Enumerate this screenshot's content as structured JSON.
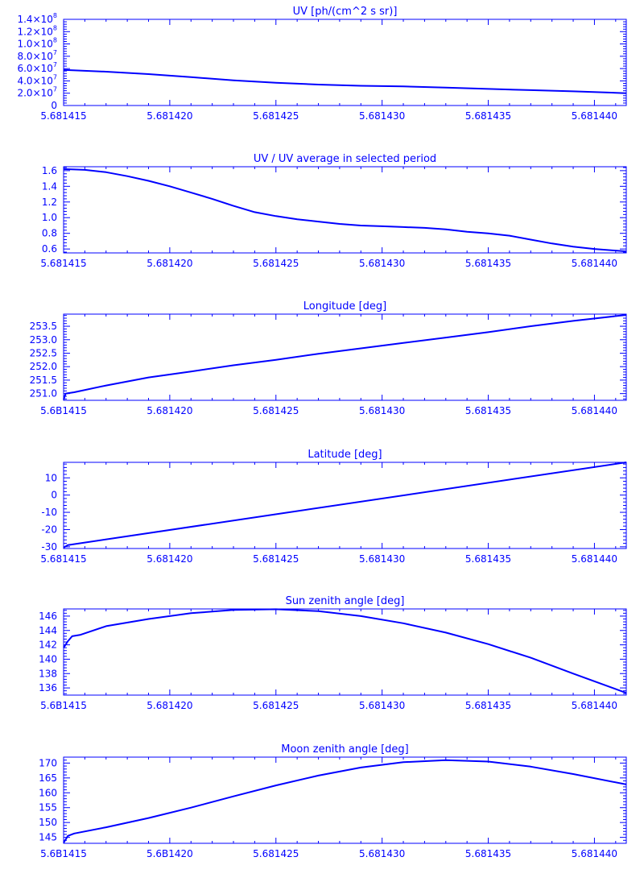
{
  "theme": {
    "color": "#0000ff",
    "background": "#ffffff"
  },
  "chart_data": [
    {
      "type": "line",
      "title": "UV [ph/(cm^2 s sr)]",
      "xlim": [
        5.681415,
        5.6814415
      ],
      "ylim": [
        0,
        140000000
      ],
      "xtick_values": [
        5.681415,
        5.68142,
        5.681425,
        5.68143,
        5.681435,
        5.68144
      ],
      "xtick_labels": [
        "5.681415",
        "5.681420",
        "5.681425",
        "5.681430",
        "5.681435",
        "5.681440"
      ],
      "ytick_values": [
        0,
        20000000,
        40000000,
        60000000,
        80000000,
        100000000,
        120000000,
        140000000
      ],
      "ytick_labels": [
        {
          "mant": "0",
          "exp": ""
        },
        {
          "mant": "2.0×10",
          "exp": "7"
        },
        {
          "mant": "4.0×10",
          "exp": "7"
        },
        {
          "mant": "6.0×10",
          "exp": "7"
        },
        {
          "mant": "8.0×10",
          "exp": "7"
        },
        {
          "mant": "1.0×10",
          "exp": "8"
        },
        {
          "mant": "1.2×10",
          "exp": "8"
        },
        {
          "mant": "1.4×10",
          "exp": "8"
        }
      ],
      "series": [
        {
          "x": [
            5.681415,
            5.681417,
            5.681419,
            5.681421,
            5.681423,
            5.681425,
            5.681427,
            5.681429,
            5.681431,
            5.681433,
            5.681435,
            5.681437,
            5.681439,
            5.6814415
          ],
          "y": [
            58000000,
            55000000,
            51000000,
            46000000,
            41000000,
            37000000,
            34000000,
            32000000,
            31000000,
            29000000,
            27000000,
            25000000,
            23000000,
            20000000
          ]
        }
      ]
    },
    {
      "type": "line",
      "title": "UV / UV average in selected period",
      "xlim": [
        5.681415,
        5.6814415
      ],
      "ylim": [
        0.55,
        1.65
      ],
      "xtick_values": [
        5.681415,
        5.68142,
        5.681425,
        5.68143,
        5.681435,
        5.68144
      ],
      "xtick_labels": [
        "5.681415",
        "5.681420",
        "5.681425",
        "5.681430",
        "5.681435",
        "5.681440"
      ],
      "ytick_values": [
        0.6,
        0.8,
        1.0,
        1.2,
        1.4,
        1.6
      ],
      "ytick_labels": [
        {
          "mant": "0.6",
          "exp": ""
        },
        {
          "mant": "0.8",
          "exp": ""
        },
        {
          "mant": "1.0",
          "exp": ""
        },
        {
          "mant": "1.2",
          "exp": ""
        },
        {
          "mant": "1.4",
          "exp": ""
        },
        {
          "mant": "1.6",
          "exp": ""
        }
      ],
      "series": [
        {
          "x": [
            5.681415,
            5.681416,
            5.681417,
            5.681418,
            5.681419,
            5.68142,
            5.681421,
            5.681422,
            5.681423,
            5.681424,
            5.681425,
            5.681426,
            5.681427,
            5.681428,
            5.681429,
            5.68143,
            5.681431,
            5.681432,
            5.681433,
            5.681434,
            5.681435,
            5.681436,
            5.681437,
            5.681438,
            5.681439,
            5.68144,
            5.6814415
          ],
          "y": [
            1.62,
            1.61,
            1.58,
            1.53,
            1.47,
            1.4,
            1.32,
            1.24,
            1.15,
            1.07,
            1.02,
            0.98,
            0.95,
            0.92,
            0.9,
            0.89,
            0.88,
            0.87,
            0.85,
            0.82,
            0.8,
            0.77,
            0.72,
            0.67,
            0.63,
            0.6,
            0.57
          ]
        }
      ]
    },
    {
      "type": "line",
      "title": "Longitude [deg]",
      "xlim": [
        5.681415,
        5.6814415
      ],
      "ylim": [
        250.75,
        253.95
      ],
      "xtick_values": [
        5.681415,
        5.68142,
        5.681425,
        5.68143,
        5.681435,
        5.68144
      ],
      "xtick_labels": [
        "5.6B1415",
        "5.681420",
        "5.681425",
        "5.681430",
        "5.681435",
        "5.681440"
      ],
      "ytick_values": [
        251.0,
        251.5,
        252.0,
        252.5,
        253.0,
        253.5
      ],
      "ytick_labels": [
        {
          "mant": "251.0",
          "exp": ""
        },
        {
          "mant": "251.5",
          "exp": ""
        },
        {
          "mant": "252.0",
          "exp": ""
        },
        {
          "mant": "252.5",
          "exp": ""
        },
        {
          "mant": "253.0",
          "exp": ""
        },
        {
          "mant": "253.5",
          "exp": ""
        }
      ],
      "series": [
        {
          "x": [
            5.681415,
            5.6814151,
            5.6814155,
            5.681417,
            5.681419,
            5.681421,
            5.681423,
            5.681425,
            5.681427,
            5.681429,
            5.681431,
            5.681433,
            5.681435,
            5.681437,
            5.681439,
            5.6814415
          ],
          "y": [
            250.78,
            251.0,
            251.05,
            251.3,
            251.6,
            251.82,
            252.05,
            252.25,
            252.48,
            252.68,
            252.88,
            253.08,
            253.28,
            253.5,
            253.7,
            253.92
          ]
        }
      ]
    },
    {
      "type": "line",
      "title": "Latitude [deg]",
      "xlim": [
        5.681415,
        5.6814415
      ],
      "ylim": [
        -31,
        19
      ],
      "xtick_values": [
        5.681415,
        5.68142,
        5.681425,
        5.68143,
        5.681435,
        5.68144
      ],
      "xtick_labels": [
        "5.681415",
        "5.681420",
        "5.681425",
        "5.681430",
        "5.681435",
        "5.681440"
      ],
      "ytick_values": [
        -30,
        -20,
        -10,
        0,
        10
      ],
      "ytick_labels": [
        {
          "mant": "-30",
          "exp": ""
        },
        {
          "mant": "-20",
          "exp": ""
        },
        {
          "mant": "-10",
          "exp": ""
        },
        {
          "mant": "0",
          "exp": ""
        },
        {
          "mant": "10",
          "exp": ""
        }
      ],
      "series": [
        {
          "x": [
            5.681415,
            5.6814152,
            5.6814415
          ],
          "y": [
            -30.5,
            -29.0,
            19.0
          ]
        }
      ]
    },
    {
      "type": "line",
      "title": "Sun zenith angle [deg]",
      "xlim": [
        5.681415,
        5.6814415
      ],
      "ylim": [
        135,
        147
      ],
      "xtick_values": [
        5.681415,
        5.68142,
        5.681425,
        5.68143,
        5.681435,
        5.68144
      ],
      "xtick_labels": [
        "5.6B1415",
        "5.681420",
        "5.681425",
        "5.681430",
        "5.681435",
        "5.681440"
      ],
      "ytick_values": [
        136,
        138,
        140,
        142,
        144,
        146
      ],
      "ytick_labels": [
        {
          "mant": "136",
          "exp": ""
        },
        {
          "mant": "138",
          "exp": ""
        },
        {
          "mant": "140",
          "exp": ""
        },
        {
          "mant": "142",
          "exp": ""
        },
        {
          "mant": "144",
          "exp": ""
        },
        {
          "mant": "146",
          "exp": ""
        }
      ],
      "series": [
        {
          "x": [
            5.681415,
            5.6814152,
            5.6814154,
            5.6814158,
            5.681417,
            5.681419,
            5.681421,
            5.681423,
            5.681425,
            5.681427,
            5.681429,
            5.681431,
            5.681433,
            5.681435,
            5.681437,
            5.681439,
            5.6814415
          ],
          "y": [
            141.6,
            142.5,
            143.2,
            143.4,
            144.6,
            145.6,
            146.4,
            146.85,
            146.95,
            146.7,
            146.0,
            145.0,
            143.7,
            142.1,
            140.2,
            138.0,
            135.3
          ]
        }
      ]
    },
    {
      "type": "line",
      "title": "Moon zenith angle [deg]",
      "xlim": [
        5.681415,
        5.6814415
      ],
      "ylim": [
        143,
        172
      ],
      "xtick_values": [
        5.681415,
        5.68142,
        5.681425,
        5.68143,
        5.681435,
        5.68144
      ],
      "xtick_labels": [
        "5.6B1415",
        "5.6B1420",
        "5.681425",
        "5.681430",
        "5.681435",
        "5.681440"
      ],
      "ytick_values": [
        145,
        150,
        155,
        160,
        165,
        170
      ],
      "ytick_labels": [
        {
          "mant": "145",
          "exp": ""
        },
        {
          "mant": "150",
          "exp": ""
        },
        {
          "mant": "155",
          "exp": ""
        },
        {
          "mant": "160",
          "exp": ""
        },
        {
          "mant": "165",
          "exp": ""
        },
        {
          "mant": "170",
          "exp": ""
        }
      ],
      "series": [
        {
          "x": [
            5.681415,
            5.6814152,
            5.6814155,
            5.681417,
            5.681419,
            5.681421,
            5.681423,
            5.681425,
            5.681427,
            5.681429,
            5.681431,
            5.681433,
            5.681435,
            5.681437,
            5.681439,
            5.6814415
          ],
          "y": [
            143.2,
            145.5,
            146.3,
            148.4,
            151.5,
            155.0,
            158.8,
            162.5,
            165.8,
            168.5,
            170.3,
            171.0,
            170.5,
            168.8,
            166.3,
            162.8
          ]
        }
      ]
    }
  ]
}
